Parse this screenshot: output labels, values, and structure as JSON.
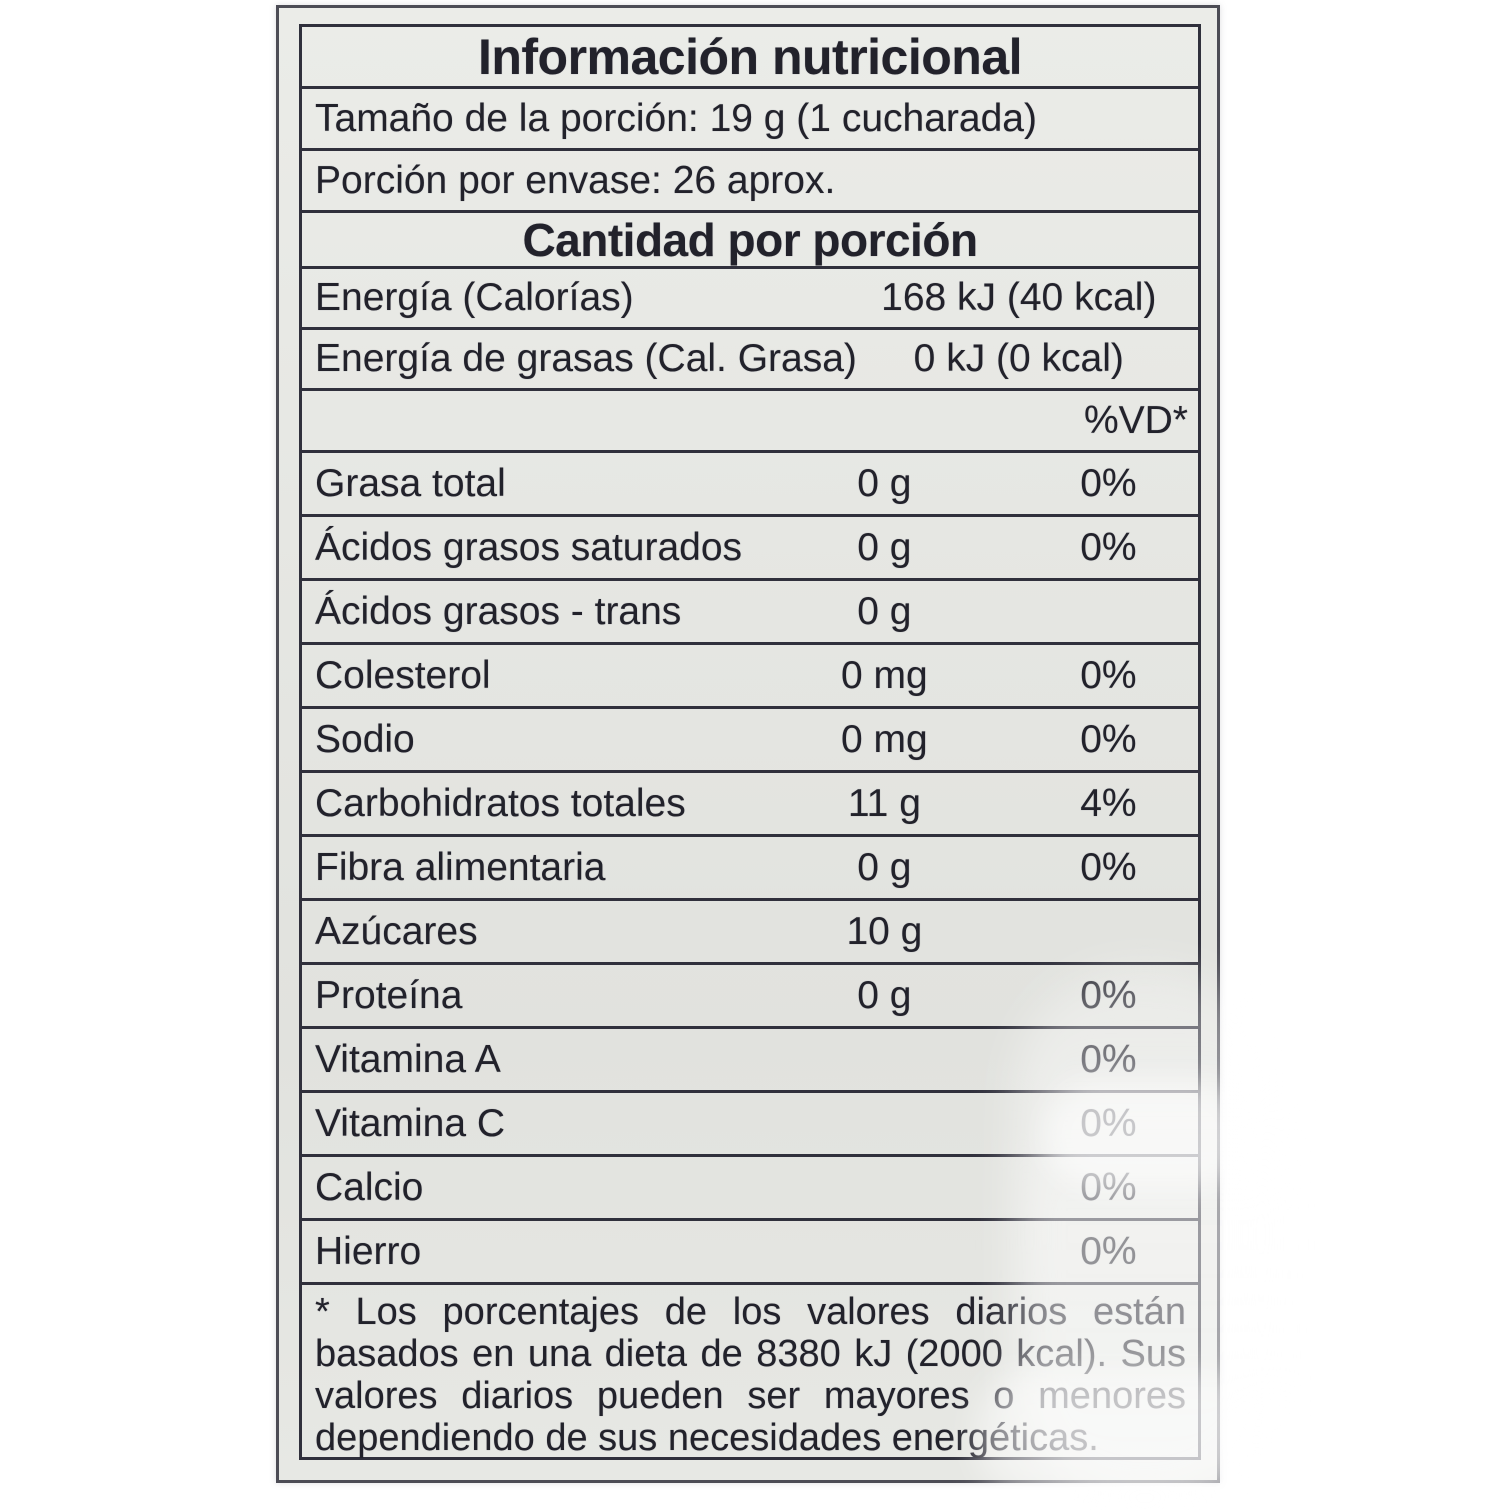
{
  "colors": {
    "label_background": "#e6e7e3",
    "rule": "#30303c",
    "outer_edge": "#4c4c55",
    "text": "#22222b"
  },
  "label": {
    "title": "Información nutricional",
    "serving_size": "Tamaño de la porción: 19 g (1 cucharada)",
    "servings_per_container": "Porción por envase: 26 aprox.",
    "amount_header": "Cantidad por porción",
    "energy_rows": [
      {
        "name": "Energía (Calorías)",
        "value": "168 kJ (40 kcal)"
      },
      {
        "name": "Energía de grasas (Cal. Grasa)",
        "value": "0 kJ (0 kcal)"
      }
    ],
    "dv_header": "%VD*",
    "nutrient_rows": [
      {
        "name": "Grasa total",
        "amount": "0 g",
        "dv": "0%"
      },
      {
        "name": "Ácidos grasos saturados",
        "amount": "0 g",
        "dv": "0%"
      },
      {
        "name": "Ácidos grasos - trans",
        "amount": "0 g",
        "dv": ""
      },
      {
        "name": "Colesterol",
        "amount": "0 mg",
        "dv": "0%"
      },
      {
        "name": "Sodio",
        "amount": "0 mg",
        "dv": "0%"
      },
      {
        "name": "Carbohidratos totales",
        "amount": "11 g",
        "dv": "4%"
      },
      {
        "name": "Fibra alimentaria",
        "amount": "0 g",
        "dv": "0%"
      },
      {
        "name": "Azúcares",
        "amount": "10 g",
        "dv": ""
      },
      {
        "name": "Proteína",
        "amount": "0 g",
        "dv": "0%"
      },
      {
        "name": "Vitamina A",
        "amount": "",
        "dv": "0%"
      },
      {
        "name": "Vitamina C",
        "amount": "",
        "dv": "0%"
      },
      {
        "name": "Calcio",
        "amount": "",
        "dv": "0%"
      },
      {
        "name": "Hierro",
        "amount": "",
        "dv": "0%"
      }
    ],
    "footnote": "* Los porcentajes de los valores diarios están basados en una dieta de 8380 kJ (2000 kcal). Sus valores diarios pueden ser mayores o menores dependiendo de sus necesidades energéticas."
  }
}
